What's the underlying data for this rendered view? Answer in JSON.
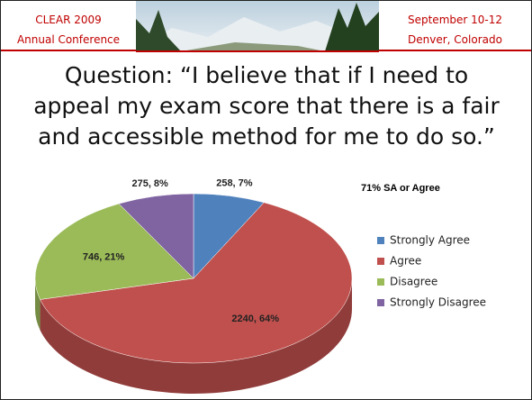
{
  "header": {
    "left": [
      "CLEAR 2009",
      "Annual Conference"
    ],
    "right": [
      "September 10-12",
      "Denver, Colorado"
    ]
  },
  "chart_data": {
    "type": "pie",
    "title": "Question: “I believe that if I need to appeal my exam score that there is a fair and accessible method for me to do so.”",
    "annotation": "71% SA or Agree",
    "categories": [
      "Strongly Agree",
      "Agree",
      "Disagree",
      "Strongly Disagree"
    ],
    "values": [
      258,
      2240,
      746,
      275
    ],
    "value_labels": [
      "258, 7%",
      "2240, 64%",
      "746, 21%",
      "275, 8%"
    ],
    "colors": [
      "#4f81bd",
      "#c0504d",
      "#9bbb59",
      "#8064a2"
    ],
    "legend": "right"
  }
}
